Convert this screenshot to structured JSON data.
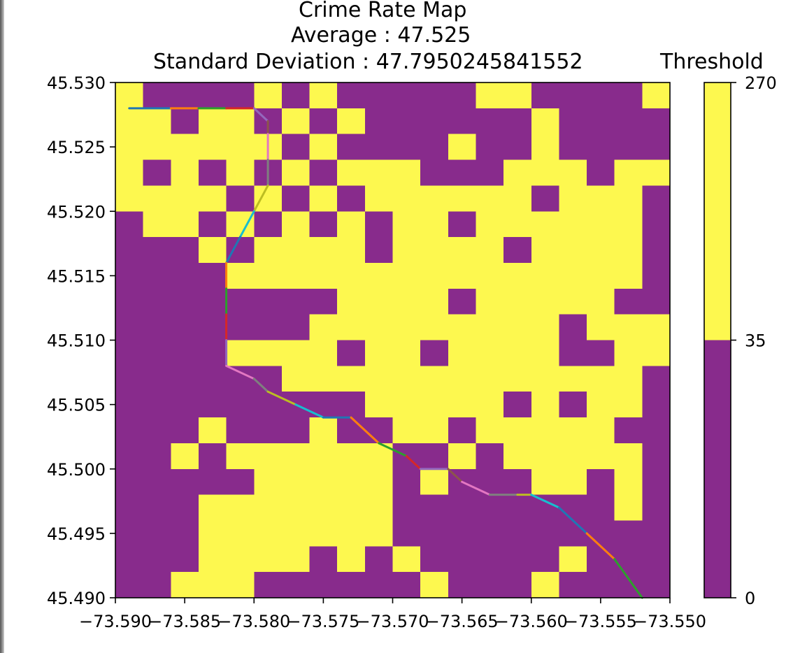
{
  "colors": {
    "low": "#882b8c",
    "high": "#fdf84f",
    "route": [
      "#1f77b4",
      "#ff7f0e",
      "#2ca02c",
      "#d62728",
      "#9467bd",
      "#8c564b",
      "#e377c2",
      "#7f7f7f",
      "#bcbd22",
      "#17becf"
    ]
  },
  "chart_data": {
    "type": "heatmap",
    "title": "Crime Rate Map",
    "subtitle_average": "Average : 47.525",
    "subtitle_std": "Standard Deviation : 47.7950245841552",
    "xlabel": "",
    "ylabel": "",
    "xlim": [
      -73.59,
      -73.55
    ],
    "ylim": [
      45.49,
      45.53
    ],
    "grid": false,
    "x_ticks": [
      -73.59,
      -73.585,
      -73.58,
      -73.575,
      -73.57,
      -73.565,
      -73.56,
      -73.555,
      -73.55
    ],
    "x_tick_labels": [
      "−73.590",
      "−73.585",
      "−73.580",
      "−73.575",
      "−73.570",
      "−73.565",
      "−73.560",
      "−73.555",
      "−73.550"
    ],
    "y_ticks": [
      45.49,
      45.495,
      45.5,
      45.505,
      45.51,
      45.515,
      45.52,
      45.525,
      45.53
    ],
    "y_tick_labels": [
      "45.490",
      "45.495",
      "45.500",
      "45.505",
      "45.510",
      "45.515",
      "45.520",
      "45.525",
      "45.530"
    ],
    "grid_size": [
      20,
      20
    ],
    "cell_legend": "1 = at or above threshold (yellow), 0 = below threshold (purple); rows listed from top (45.530) to bottom (45.490)",
    "cells": [
      [
        1,
        0,
        0,
        0,
        0,
        1,
        0,
        1,
        0,
        0,
        0,
        0,
        0,
        1,
        1,
        0,
        0,
        0,
        0,
        1
      ],
      [
        1,
        1,
        0,
        1,
        1,
        0,
        1,
        0,
        1,
        0,
        0,
        0,
        0,
        0,
        0,
        1,
        0,
        0,
        0,
        0
      ],
      [
        1,
        1,
        1,
        1,
        1,
        1,
        0,
        1,
        0,
        0,
        0,
        0,
        1,
        0,
        0,
        1,
        0,
        0,
        0,
        0
      ],
      [
        1,
        0,
        1,
        0,
        1,
        0,
        1,
        0,
        1,
        1,
        1,
        0,
        0,
        0,
        1,
        1,
        1,
        0,
        1,
        1
      ],
      [
        1,
        1,
        1,
        1,
        0,
        1,
        0,
        1,
        0,
        1,
        1,
        1,
        1,
        1,
        1,
        0,
        1,
        1,
        1,
        0
      ],
      [
        0,
        1,
        1,
        0,
        1,
        0,
        1,
        0,
        1,
        0,
        1,
        1,
        0,
        1,
        1,
        1,
        1,
        1,
        1,
        0
      ],
      [
        0,
        0,
        0,
        1,
        0,
        1,
        1,
        1,
        1,
        0,
        1,
        1,
        1,
        1,
        0,
        1,
        1,
        1,
        1,
        0
      ],
      [
        0,
        0,
        0,
        0,
        1,
        1,
        1,
        1,
        1,
        1,
        1,
        1,
        1,
        1,
        1,
        1,
        1,
        1,
        1,
        0
      ],
      [
        0,
        0,
        0,
        0,
        0,
        0,
        0,
        0,
        1,
        1,
        1,
        1,
        0,
        1,
        1,
        1,
        1,
        1,
        0,
        0
      ],
      [
        0,
        0,
        0,
        0,
        0,
        0,
        0,
        1,
        1,
        1,
        1,
        1,
        1,
        1,
        1,
        1,
        0,
        1,
        1,
        1
      ],
      [
        0,
        0,
        0,
        0,
        1,
        1,
        1,
        1,
        0,
        1,
        1,
        0,
        1,
        1,
        1,
        1,
        0,
        0,
        1,
        1
      ],
      [
        0,
        0,
        0,
        0,
        0,
        0,
        1,
        1,
        1,
        1,
        1,
        1,
        1,
        1,
        1,
        1,
        1,
        1,
        1,
        0
      ],
      [
        0,
        0,
        0,
        0,
        0,
        0,
        0,
        0,
        0,
        1,
        1,
        1,
        1,
        1,
        0,
        1,
        0,
        1,
        1,
        0
      ],
      [
        0,
        0,
        0,
        1,
        0,
        0,
        0,
        1,
        0,
        0,
        1,
        1,
        0,
        1,
        1,
        1,
        1,
        1,
        0,
        0
      ],
      [
        0,
        0,
        1,
        0,
        1,
        1,
        1,
        1,
        1,
        1,
        0,
        0,
        1,
        0,
        1,
        1,
        1,
        1,
        1,
        0
      ],
      [
        0,
        0,
        0,
        0,
        0,
        1,
        1,
        1,
        1,
        1,
        0,
        1,
        0,
        0,
        0,
        1,
        1,
        0,
        1,
        0
      ],
      [
        0,
        0,
        0,
        1,
        1,
        1,
        1,
        1,
        1,
        1,
        0,
        0,
        0,
        0,
        0,
        0,
        0,
        0,
        1,
        0
      ],
      [
        0,
        0,
        0,
        1,
        1,
        1,
        1,
        1,
        1,
        1,
        0,
        0,
        0,
        0,
        0,
        0,
        0,
        0,
        0,
        0
      ],
      [
        0,
        0,
        0,
        1,
        1,
        1,
        1,
        0,
        1,
        0,
        1,
        0,
        0,
        0,
        0,
        0,
        1,
        0,
        0,
        0
      ],
      [
        0,
        0,
        1,
        1,
        1,
        0,
        0,
        0,
        0,
        0,
        0,
        1,
        0,
        0,
        0,
        1,
        0,
        0,
        0,
        0
      ]
    ],
    "route": {
      "x": [
        -73.589,
        -73.586,
        -73.584,
        -73.582,
        -73.58,
        -73.579,
        -73.579,
        -73.579,
        -73.579,
        -73.58,
        -73.581,
        -73.582,
        -73.582,
        -73.582,
        -73.582,
        -73.582,
        -73.582,
        -73.58,
        -73.579,
        -73.577,
        -73.575,
        -73.573,
        -73.571,
        -73.569,
        -73.568,
        -73.566,
        -73.565,
        -73.563,
        -73.561,
        -73.56,
        -73.558,
        -73.556,
        -73.554,
        -73.552
      ],
      "y": [
        45.528,
        45.528,
        45.528,
        45.528,
        45.528,
        45.527,
        45.526,
        45.524,
        45.522,
        45.52,
        45.518,
        45.516,
        45.514,
        45.512,
        45.51,
        45.508,
        45.508,
        45.507,
        45.506,
        45.505,
        45.504,
        45.504,
        45.502,
        45.501,
        45.5,
        45.5,
        45.499,
        45.498,
        45.498,
        45.498,
        45.497,
        45.495,
        45.493,
        45.49
      ]
    },
    "colorbar": {
      "label": "Threshold",
      "ticks": [
        0,
        35,
        270
      ],
      "tick_labels": [
        "0",
        "35",
        "270"
      ],
      "range": [
        0,
        270
      ],
      "placement": "right"
    }
  }
}
